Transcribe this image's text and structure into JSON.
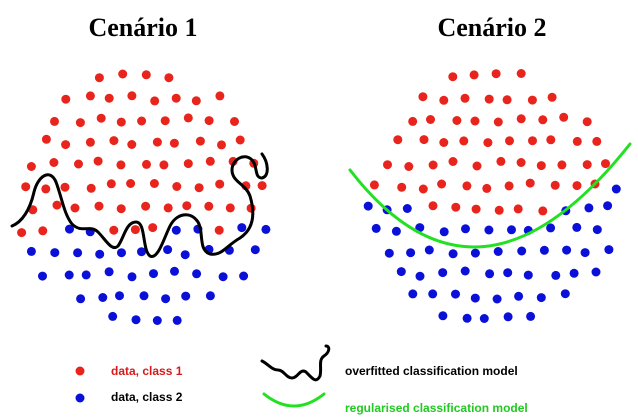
{
  "panels": [
    {
      "title": "Cenário 1"
    },
    {
      "title": "Cenário 2"
    }
  ],
  "legend": {
    "class1": "data, class 1",
    "class2": "data, class 2",
    "overfitted": "overfitted classification model",
    "regularised": "regularised classification model"
  },
  "colors": {
    "class1": "#e8241c",
    "class2": "#0a10d8",
    "overfitted_curve": "#000000",
    "regularised_curve": "#22e022",
    "legend_text_class1": "#d7191c",
    "legend_text_class2": "#000000",
    "legend_text_overfitted": "#000000",
    "legend_text_regularised": "#22c922"
  }
}
